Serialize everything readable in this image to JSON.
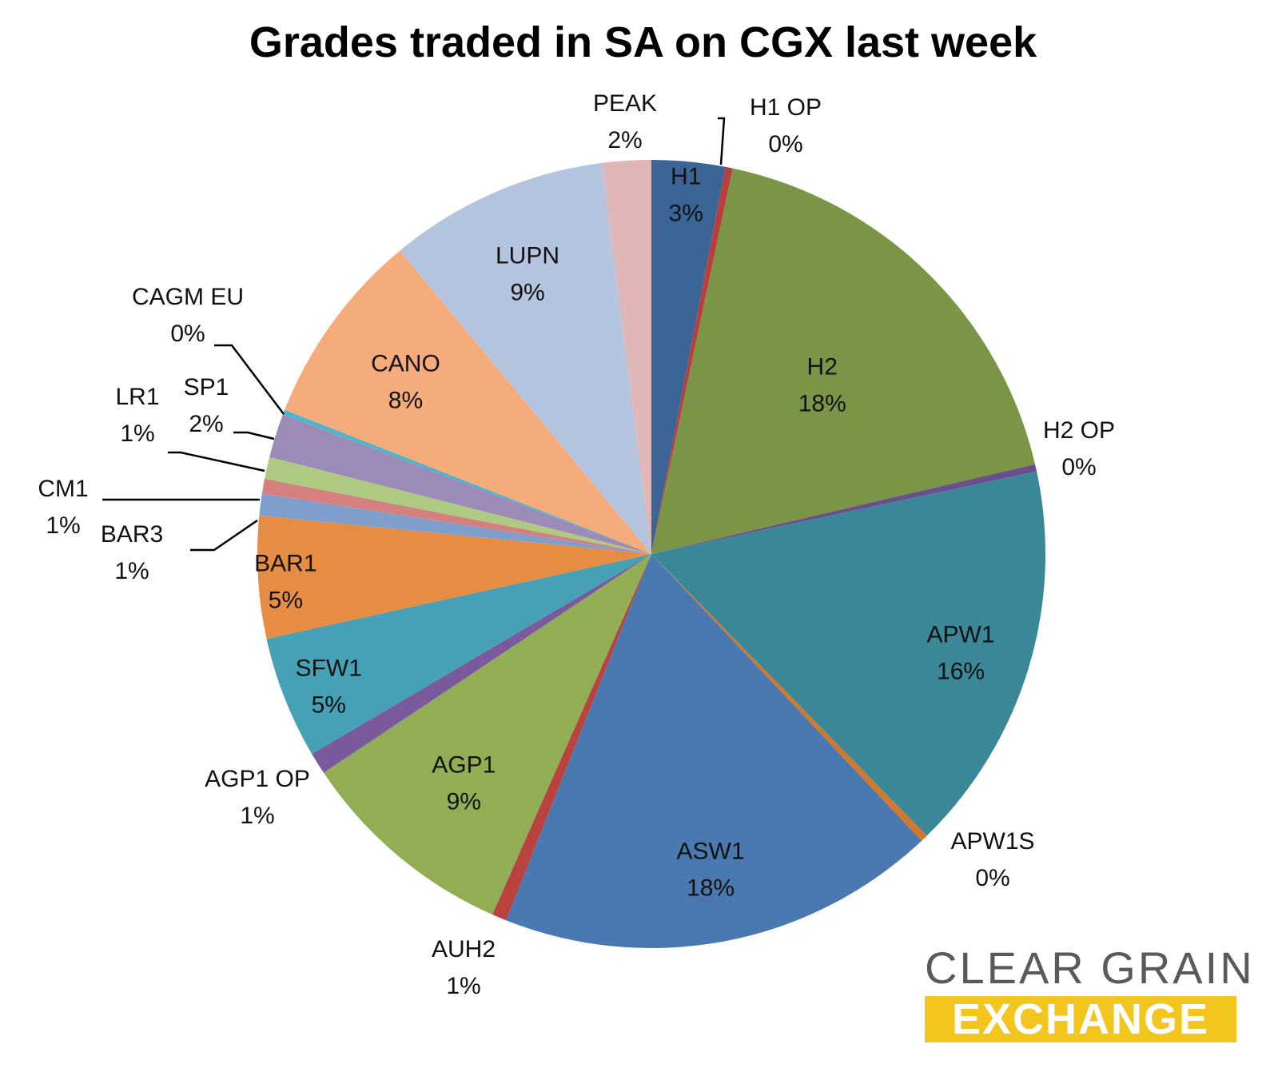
{
  "chart_data": {
    "type": "pie",
    "title": "Grades traded in SA on CGX last week",
    "slices": [
      {
        "label": "H1",
        "percent_label": "3%",
        "value": 3,
        "color": "#3b6596"
      },
      {
        "label": "H1 OP",
        "percent_label": "0%",
        "value": 0.3,
        "color": "#b7403e"
      },
      {
        "label": "H2",
        "percent_label": "18%",
        "value": 18,
        "color": "#7a9545"
      },
      {
        "label": "H2 OP",
        "percent_label": "0%",
        "value": 0.3,
        "color": "#6a4f8f"
      },
      {
        "label": "APW1",
        "percent_label": "16%",
        "value": 16,
        "color": "#398797"
      },
      {
        "label": "APW1S",
        "percent_label": "0%",
        "value": 0.3,
        "color": "#d1782c"
      },
      {
        "label": "ASW1",
        "percent_label": "18%",
        "value": 18,
        "color": "#4a78b0"
      },
      {
        "label": "AUH2",
        "percent_label": "1%",
        "value": 0.6,
        "color": "#b8433f"
      },
      {
        "label": "AGP1",
        "percent_label": "9%",
        "value": 9,
        "color": "#92ae54"
      },
      {
        "label": "AGP1 OP",
        "percent_label": "1%",
        "value": 0.9,
        "color": "#7a5a9c"
      },
      {
        "label": "SFW1",
        "percent_label": "5%",
        "value": 5,
        "color": "#46a1b7"
      },
      {
        "label": "BAR1",
        "percent_label": "5%",
        "value": 5,
        "color": "#e68c43"
      },
      {
        "label": "BAR3",
        "percent_label": "1%",
        "value": 0.9,
        "color": "#7f9ecb"
      },
      {
        "label": "CM1",
        "percent_label": "1%",
        "value": 0.6,
        "color": "#d3807e"
      },
      {
        "label": "LR1",
        "percent_label": "1%",
        "value": 0.9,
        "color": "#adc982"
      },
      {
        "label": "SP1",
        "percent_label": "2%",
        "value": 1.8,
        "color": "#9c8bb6"
      },
      {
        "label": "CAGM EU",
        "percent_label": "0%",
        "value": 0.2,
        "color": "#4fb5cd"
      },
      {
        "label": "CANO",
        "percent_label": "8%",
        "value": 8,
        "color": "#f6ab7b"
      },
      {
        "label": "LUPN",
        "percent_label": "9%",
        "value": 9,
        "color": "#b4c4de"
      },
      {
        "label": "PEAK",
        "percent_label": "2%",
        "value": 2,
        "color": "#dfb6b5"
      }
    ]
  },
  "logo": {
    "line1": "CLEAR GRAIN",
    "line2": "EXCHANGE"
  }
}
